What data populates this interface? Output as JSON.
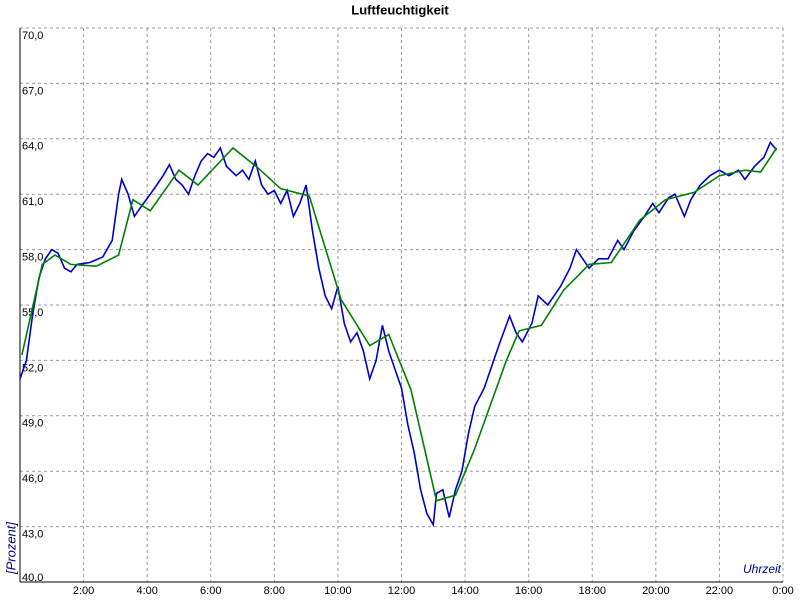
{
  "chart_data": {
    "type": "line",
    "title": "Luftfeuchtigkeit",
    "y_label": "[Prozent]",
    "x_label": "Uhrzeit",
    "xlim": [
      0,
      24
    ],
    "ylim": [
      40,
      70
    ],
    "grid": true,
    "xticks": [
      {
        "value": 2,
        "label": "2:00"
      },
      {
        "value": 4,
        "label": "4:00"
      },
      {
        "value": 6,
        "label": "6:00"
      },
      {
        "value": 8,
        "label": "8:00"
      },
      {
        "value": 10,
        "label": "10:00"
      },
      {
        "value": 12,
        "label": "12:00"
      },
      {
        "value": 14,
        "label": "14:00"
      },
      {
        "value": 16,
        "label": "16:00"
      },
      {
        "value": 18,
        "label": "18:00"
      },
      {
        "value": 20,
        "label": "20:00"
      },
      {
        "value": 22,
        "label": "22:00"
      },
      {
        "value": 24,
        "label": "0:00"
      }
    ],
    "yticks": [
      {
        "value": 40,
        "label": "40,0"
      },
      {
        "value": 43,
        "label": "43,0"
      },
      {
        "value": 46,
        "label": "46,0"
      },
      {
        "value": 49,
        "label": "49,0"
      },
      {
        "value": 52,
        "label": "52,0"
      },
      {
        "value": 55,
        "label": "55,0"
      },
      {
        "value": 58,
        "label": "58,0"
      },
      {
        "value": 61,
        "label": "61,0"
      },
      {
        "value": 64,
        "label": "64,0"
      },
      {
        "value": 67,
        "label": "67,0"
      },
      {
        "value": 70,
        "label": "70,0"
      }
    ],
    "series": [
      {
        "color": "#0000cc",
        "x": [
          0.0,
          0.2,
          0.4,
          0.6,
          0.8,
          1.0,
          1.2,
          1.4,
          1.6,
          1.8,
          2.2,
          2.6,
          2.9,
          3.1,
          3.2,
          3.4,
          3.6,
          3.8,
          4.1,
          4.3,
          4.5,
          4.7,
          4.9,
          5.1,
          5.3,
          5.5,
          5.7,
          5.9,
          6.1,
          6.3,
          6.5,
          6.8,
          7.0,
          7.2,
          7.4,
          7.6,
          7.8,
          8.0,
          8.2,
          8.4,
          8.6,
          8.8,
          9.0,
          9.2,
          9.4,
          9.6,
          9.8,
          10.0,
          10.2,
          10.4,
          10.6,
          10.8,
          11.0,
          11.2,
          11.4,
          11.6,
          11.8,
          12.0,
          12.2,
          12.4,
          12.6,
          12.8,
          13.0,
          13.1,
          13.3,
          13.5,
          13.7,
          13.9,
          14.1,
          14.3,
          14.6,
          14.9,
          15.1,
          15.4,
          15.6,
          15.8,
          16.1,
          16.3,
          16.6,
          16.8,
          17.0,
          17.3,
          17.5,
          17.7,
          17.9,
          18.2,
          18.5,
          18.8,
          19.0,
          19.3,
          19.6,
          19.9,
          20.1,
          20.4,
          20.6,
          20.9,
          21.1,
          21.4,
          21.7,
          22.0,
          22.3,
          22.6,
          22.8,
          23.1,
          23.4,
          23.6,
          23.8
        ],
        "values": [
          51.0,
          52.0,
          54.5,
          56.5,
          57.5,
          58.0,
          57.8,
          57.0,
          56.8,
          57.2,
          57.3,
          57.6,
          58.5,
          61.0,
          61.8,
          61.0,
          59.8,
          60.3,
          61.0,
          61.5,
          62.0,
          62.6,
          61.8,
          61.5,
          61.0,
          62.0,
          62.8,
          63.2,
          63.0,
          63.5,
          62.5,
          62.0,
          62.3,
          61.8,
          62.8,
          61.5,
          61.0,
          61.2,
          60.5,
          61.2,
          59.8,
          60.5,
          61.5,
          59.0,
          57.0,
          55.5,
          54.8,
          56.0,
          54.0,
          53.0,
          53.5,
          52.5,
          51.0,
          52.0,
          53.9,
          52.5,
          51.5,
          50.5,
          48.5,
          47.0,
          45.0,
          43.7,
          43.1,
          44.8,
          45.0,
          43.5,
          45.0,
          46.0,
          48.0,
          49.5,
          50.5,
          52.0,
          53.0,
          54.4,
          53.5,
          53.0,
          54.0,
          55.5,
          55.0,
          55.5,
          56.0,
          57.0,
          58.0,
          57.5,
          57.0,
          57.5,
          57.5,
          58.5,
          58.0,
          59.0,
          59.7,
          60.5,
          60.0,
          60.8,
          61.0,
          59.8,
          60.7,
          61.5,
          62.0,
          62.3,
          62.0,
          62.3,
          61.8,
          62.5,
          63.0,
          63.8,
          63.4
        ]
      },
      {
        "color": "#008000",
        "x": [
          0.06,
          0.7,
          1.1,
          1.6,
          2.4,
          3.1,
          3.55,
          4.1,
          5.0,
          5.6,
          6.7,
          7.5,
          8.2,
          9.1,
          10.1,
          11.0,
          11.6,
          12.3,
          13.1,
          13.7,
          14.3,
          15.3,
          15.7,
          16.4,
          17.1,
          17.9,
          18.6,
          19.5,
          20.3,
          21.2,
          22.0,
          22.8,
          23.3,
          23.8
        ],
        "values": [
          52.3,
          57.2,
          57.7,
          57.2,
          57.1,
          57.7,
          60.7,
          60.1,
          62.3,
          61.5,
          63.5,
          62.4,
          61.3,
          60.9,
          55.3,
          52.8,
          53.4,
          50.4,
          44.4,
          44.7,
          47.2,
          52.0,
          53.6,
          53.9,
          55.8,
          57.2,
          57.3,
          59.6,
          60.7,
          61.1,
          62.0,
          62.3,
          62.2,
          63.5
        ]
      }
    ]
  }
}
